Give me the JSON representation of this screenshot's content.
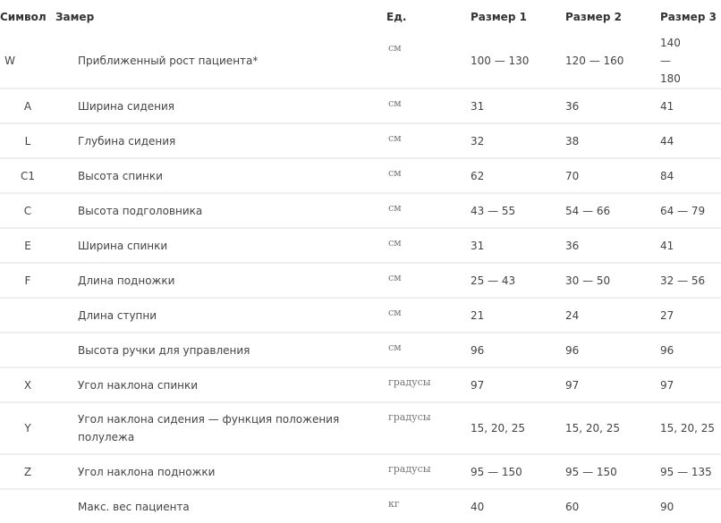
{
  "headers": [
    "Символ",
    "Замер",
    "Ед.",
    "Размер 1",
    "Размер 2",
    "Размер 3"
  ],
  "rows": [
    {
      "symbol": "W",
      "name": "Приближенный  рост пациента*",
      "unit": "см",
      "s1": "100 — 130",
      "s2": "120 — 160",
      "s3": "140 — 180"
    },
    {
      "symbol": "A",
      "name": "Ширина сидения",
      "unit": "см",
      "s1": "31",
      "s2": "36",
      "s3": "41"
    },
    {
      "symbol": "L",
      "name": "Глубина сидения",
      "unit": "см",
      "s1": "32",
      "s2": "38",
      "s3": "44"
    },
    {
      "symbol": "C1",
      "name": "Высота спинки",
      "unit": "см",
      "s1": "62",
      "s2": "70",
      "s3": "84"
    },
    {
      "symbol": "C",
      "name": "Высота подголовника",
      "unit": "см",
      "s1": "43 — 55",
      "s2": "54 — 66",
      "s3": "64 — 79"
    },
    {
      "symbol": "E",
      "name": "Ширина спинки",
      "unit": "см",
      "s1": "31",
      "s2": "36",
      "s3": "41"
    },
    {
      "symbol": "F",
      "name": "Длина подножки",
      "unit": "см",
      "s1": "25 — 43",
      "s2": "30 — 50",
      "s3": "32 — 56"
    },
    {
      "symbol": "",
      "name": "Длина ступни",
      "unit": "см",
      "s1": "21",
      "s2": "24",
      "s3": "27"
    },
    {
      "symbol": "",
      "name": "Высота ручки для управления",
      "unit": "см",
      "s1": "96",
      "s2": "96",
      "s3": "96"
    },
    {
      "symbol": "X",
      "name": "Угол наклона спинки",
      "unit": "градусы",
      "s1": "97",
      "s2": "97",
      "s3": "97"
    },
    {
      "symbol": "Y",
      "name": "Угол наклона сидения — функция положения полулежа",
      "unit": "градусы",
      "s1": "15, 20, 25",
      "s2": "15, 20, 25",
      "s3": "15, 20, 25"
    },
    {
      "symbol": "Z",
      "name": "Угол наклона подножки",
      "unit": "градусы",
      "s1": "95 — 150",
      "s2": "95 — 150",
      "s3": "95 — 135"
    },
    {
      "symbol": "",
      "name": "Макс. вес пациента",
      "unit": "кг",
      "s1": "40",
      "s2": "60",
      "s3": "90"
    }
  ]
}
